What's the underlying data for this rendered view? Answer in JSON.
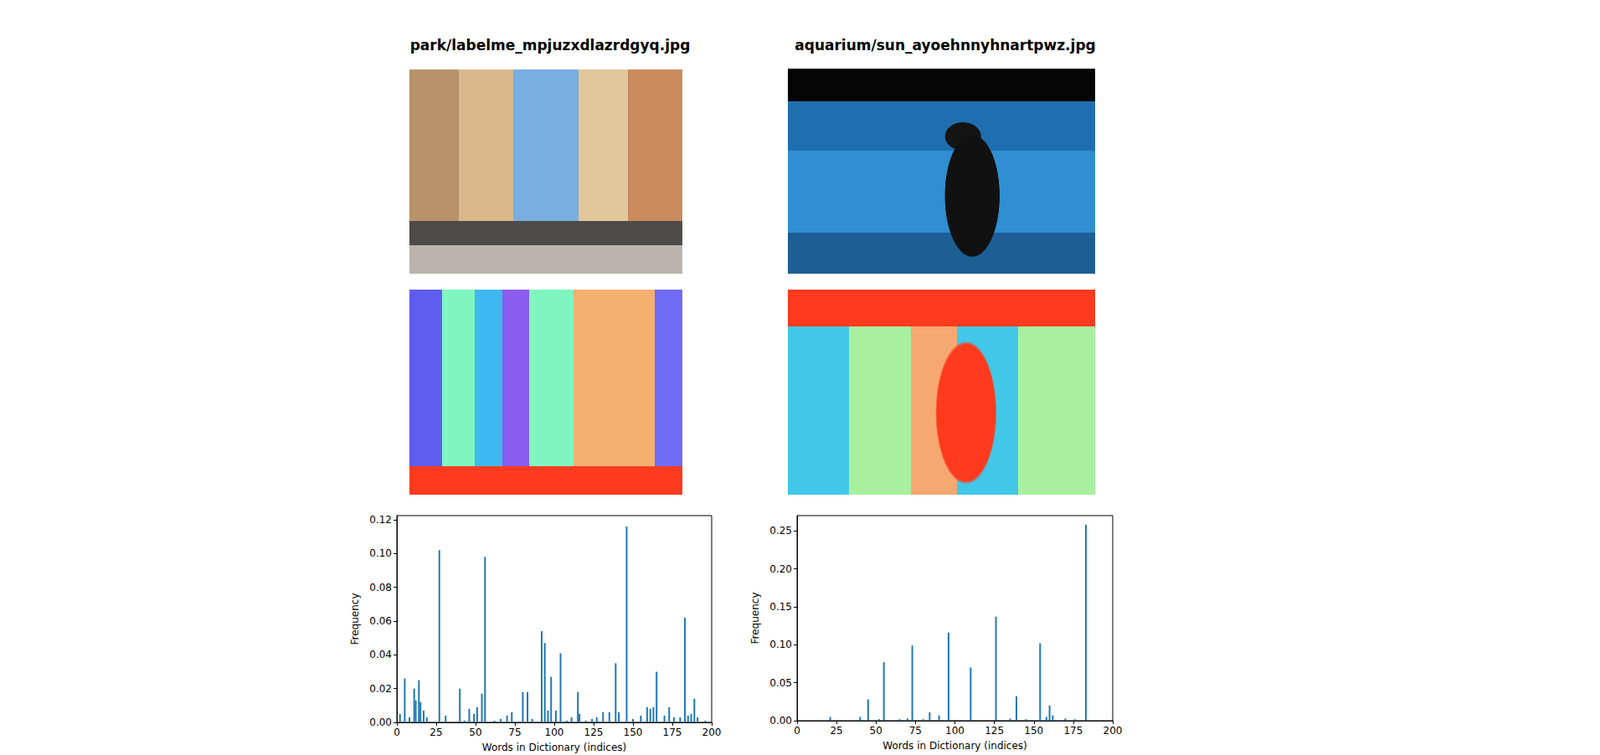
{
  "chart_data": [
    {
      "type": "bar",
      "title": "park/labelme_mpjuzxdlazrdgyq.jpg",
      "xlabel": "Words in Dictionary (indices)",
      "ylabel": "Frequency",
      "x": [
        2,
        5,
        8,
        11,
        12,
        14,
        15,
        17,
        19,
        27,
        31,
        40,
        43,
        46,
        49,
        51,
        54,
        56,
        62,
        66,
        70,
        73,
        80,
        83,
        86,
        92,
        94,
        96,
        98,
        101,
        104,
        108,
        111,
        115,
        116,
        120,
        124,
        127,
        131,
        135,
        139,
        141,
        146,
        150,
        155,
        159,
        161,
        163,
        165,
        170,
        173,
        176,
        180,
        183,
        185,
        187,
        189,
        191,
        196
      ],
      "values": [
        0.005,
        0.026,
        0.003,
        0.02,
        0.013,
        0.025,
        0.012,
        0.007,
        0.003,
        0.102,
        0.004,
        0.02,
        0.001,
        0.008,
        0.005,
        0.009,
        0.017,
        0.098,
        0.001,
        0.002,
        0.004,
        0.006,
        0.018,
        0.018,
        0.002,
        0.054,
        0.047,
        0.007,
        0.027,
        0.007,
        0.041,
        0.001,
        0.003,
        0.018,
        0.005,
        0.001,
        0.002,
        0.003,
        0.006,
        0.006,
        0.035,
        0.006,
        0.116,
        0.002,
        0.004,
        0.009,
        0.008,
        0.009,
        0.03,
        0.004,
        0.009,
        0.003,
        0.003,
        0.062,
        0.004,
        0.005,
        0.014,
        0.003,
        0.001
      ],
      "color": "#1f77b4",
      "grid": false,
      "xlim": [
        0,
        200
      ],
      "xticks": [
        0,
        25,
        50,
        75,
        100,
        125,
        150,
        175,
        200
      ],
      "ylim": [
        0,
        0.1225
      ],
      "yticks": [
        {
          "value": 0,
          "label": "0.00"
        },
        {
          "value": 0.02,
          "label": "0.02"
        },
        {
          "value": 0.04,
          "label": "0.04"
        },
        {
          "value": 0.06,
          "label": "0.06"
        },
        {
          "value": 0.08,
          "label": "0.08"
        },
        {
          "value": 0.1,
          "label": "0.10"
        },
        {
          "value": 0.12,
          "label": "0.12"
        }
      ]
    },
    {
      "type": "bar",
      "title": "aquarium/sun_ayoehnnyhnartpwz.jpg",
      "xlabel": "Words in Dictionary (indices)",
      "ylabel": "Frequency",
      "x": [
        21,
        40,
        45,
        52,
        55,
        65,
        70,
        73,
        80,
        84,
        90,
        96,
        110,
        126,
        135,
        139,
        145,
        154,
        158,
        160,
        162,
        170,
        176,
        183
      ],
      "values": [
        0.005,
        0.005,
        0.028,
        0.002,
        0.077,
        0.002,
        0.003,
        0.099,
        0.002,
        0.011,
        0.007,
        0.116,
        0.07,
        0.137,
        0.003,
        0.032,
        0.002,
        0.102,
        0.005,
        0.02,
        0.007,
        0.003,
        0.002,
        0.258
      ],
      "color": "#1f77b4",
      "grid": false,
      "xlim": [
        0,
        200
      ],
      "xticks": [
        0,
        25,
        50,
        75,
        100,
        125,
        150,
        175,
        200
      ],
      "ylim": [
        0,
        0.27
      ],
      "yticks": [
        {
          "value": 0,
          "label": "0.00"
        },
        {
          "value": 0.05,
          "label": "0.05"
        },
        {
          "value": 0.1,
          "label": "0.10"
        },
        {
          "value": 0.15,
          "label": "0.15"
        },
        {
          "value": 0.2,
          "label": "0.20"
        },
        {
          "value": 0.25,
          "label": "0.25"
        }
      ]
    }
  ]
}
